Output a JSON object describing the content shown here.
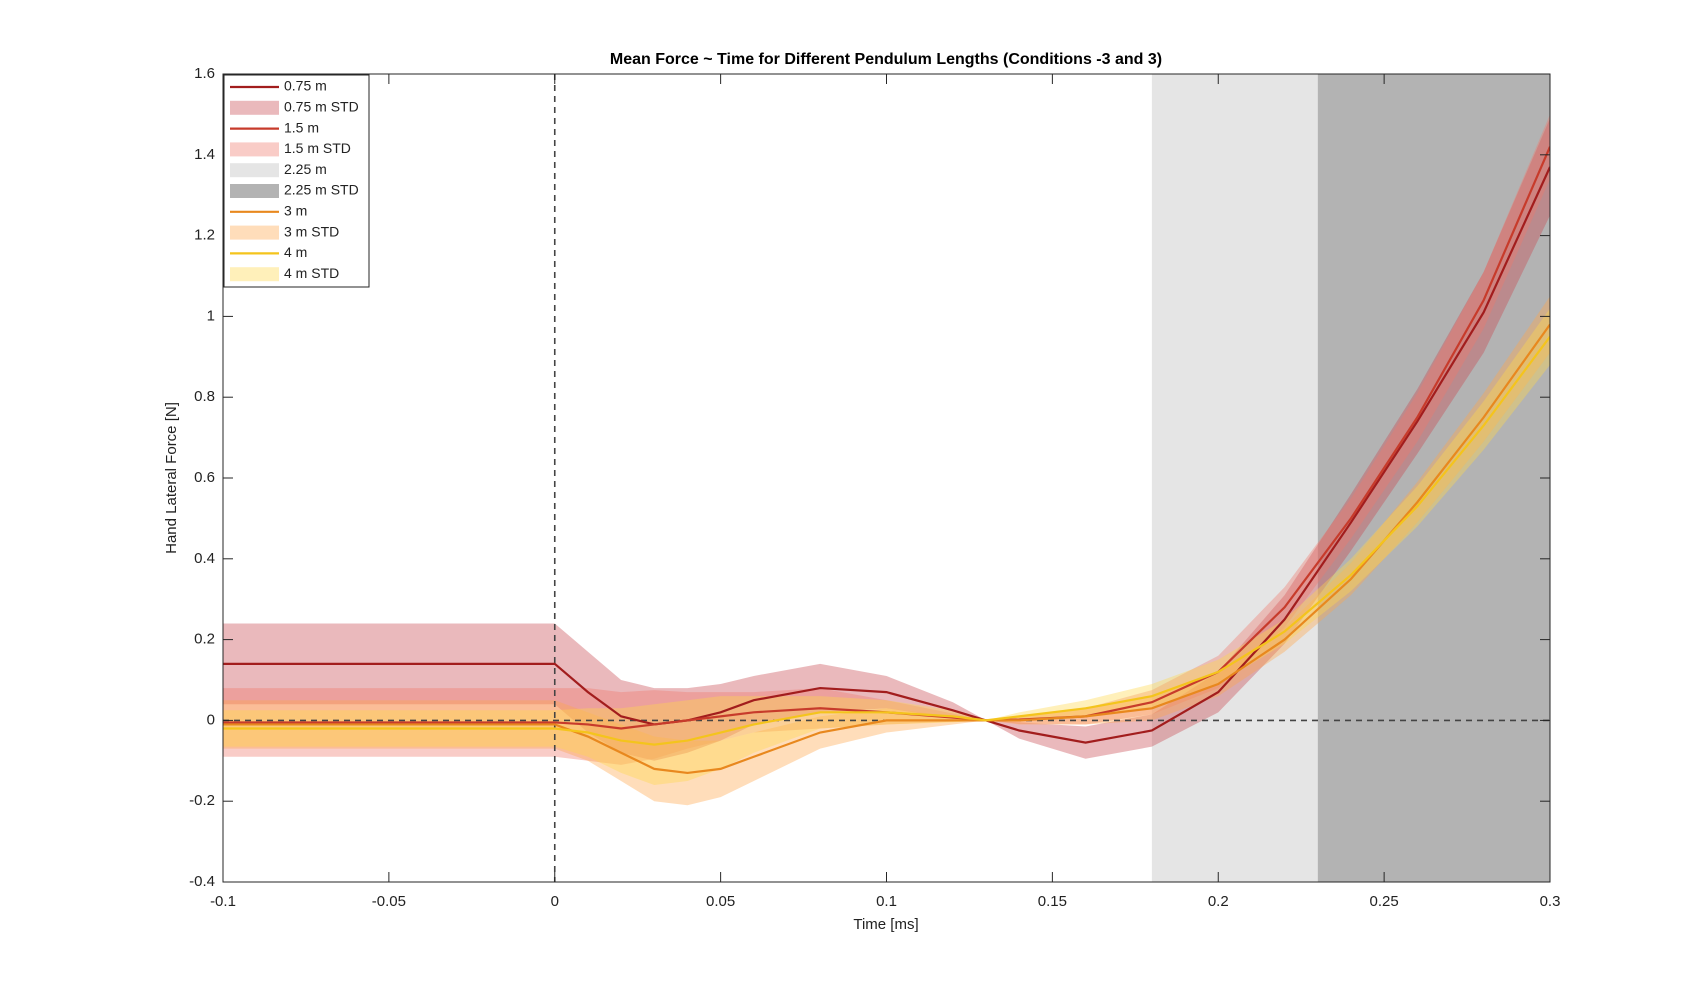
{
  "chart_data": {
    "type": "line",
    "title": "Mean Force ~ Time for Different Pendulum Lengths (Conditions -3 and 3)",
    "xlabel": "Time [ms]",
    "ylabel": "Hand Lateral Force [N]",
    "xlim": [
      -0.1,
      0.3
    ],
    "ylim": [
      -0.4,
      1.6
    ],
    "xticks": [
      -0.1,
      -0.05,
      0,
      0.05,
      0.1,
      0.15,
      0.2,
      0.25,
      0.3
    ],
    "yticks": [
      -0.4,
      -0.2,
      0,
      0.2,
      0.4,
      0.6,
      0.8,
      1,
      1.2,
      1.4,
      1.6
    ],
    "vline": 0,
    "hline": 0,
    "legend": "upper left",
    "x": [
      -0.1,
      0,
      0.01,
      0.02,
      0.03,
      0.04,
      0.05,
      0.06,
      0.08,
      0.1,
      0.12,
      0.13,
      0.14,
      0.16,
      0.18,
      0.2,
      0.22,
      0.24,
      0.26,
      0.28,
      0.3
    ],
    "series": [
      {
        "name": "0.75 m",
        "color": "#a21d1d",
        "std_name": "0.75 m STD",
        "std_color": "#c8464e",
        "values": [
          0.14,
          0.14,
          0.07,
          0.01,
          -0.01,
          0,
          0.02,
          0.05,
          0.08,
          0.07,
          0.025,
          0,
          -0.025,
          -0.055,
          -0.025,
          0.07,
          0.25,
          0.49,
          0.74,
          1.01,
          1.37
        ],
        "std": [
          0.1,
          0.1,
          0.1,
          0.09,
          0.09,
          0.08,
          0.07,
          0.06,
          0.06,
          0.04,
          0.02,
          0,
          0.02,
          0.04,
          0.04,
          0.05,
          0.06,
          0.07,
          0.08,
          0.1,
          0.12
        ]
      },
      {
        "name": "1.5 m",
        "color": "#c73b2b",
        "std_name": "1.5 m STD",
        "std_color": "#ef7a6c",
        "values": [
          -0.005,
          -0.005,
          -0.01,
          -0.02,
          -0.01,
          0,
          0.01,
          0.02,
          0.03,
          0.02,
          0.007,
          0,
          0.002,
          0.01,
          0.045,
          0.12,
          0.28,
          0.5,
          0.75,
          1.04,
          1.42
        ],
        "std": [
          0.085,
          0.085,
          0.09,
          0.09,
          0.085,
          0.07,
          0.06,
          0.05,
          0.05,
          0.03,
          0.01,
          0,
          0.01,
          0.02,
          0.03,
          0.04,
          0.05,
          0.05,
          0.06,
          0.07,
          0.08
        ]
      },
      {
        "name": "2.25 m",
        "color": "#e5e5e5",
        "xrange": [
          0.18,
          0.23
        ]
      },
      {
        "name": "2.25 m STD",
        "color": "#b3b3b3",
        "xrange": [
          0.23,
          0.3
        ]
      },
      {
        "name": "3 m",
        "color": "#e8881e",
        "std_name": "3 m STD",
        "std_color": "#ffa64a",
        "values": [
          -0.01,
          -0.01,
          -0.04,
          -0.08,
          -0.12,
          -0.13,
          -0.12,
          -0.09,
          -0.03,
          0,
          0,
          0,
          0,
          0.01,
          0.03,
          0.09,
          0.2,
          0.35,
          0.54,
          0.75,
          0.98
        ],
        "std": [
          0.06,
          0.06,
          0.06,
          0.07,
          0.08,
          0.08,
          0.07,
          0.06,
          0.04,
          0.03,
          0.01,
          0,
          0.01,
          0.02,
          0.03,
          0.03,
          0.03,
          0.04,
          0.05,
          0.06,
          0.07
        ]
      },
      {
        "name": "4 m",
        "color": "#f4c41c",
        "std_name": "4 m STD",
        "std_color": "#ffd84a",
        "values": [
          -0.02,
          -0.02,
          -0.03,
          -0.05,
          -0.06,
          -0.05,
          -0.03,
          -0.01,
          0.02,
          0.02,
          0.01,
          0,
          0.01,
          0.03,
          0.06,
          0.12,
          0.22,
          0.36,
          0.53,
          0.73,
          0.95
        ],
        "std": [
          0.045,
          0.045,
          0.06,
          0.08,
          0.1,
          0.1,
          0.09,
          0.07,
          0.04,
          0.03,
          0.015,
          0,
          0.01,
          0.02,
          0.03,
          0.03,
          0.03,
          0.04,
          0.05,
          0.06,
          0.07
        ]
      }
    ]
  }
}
